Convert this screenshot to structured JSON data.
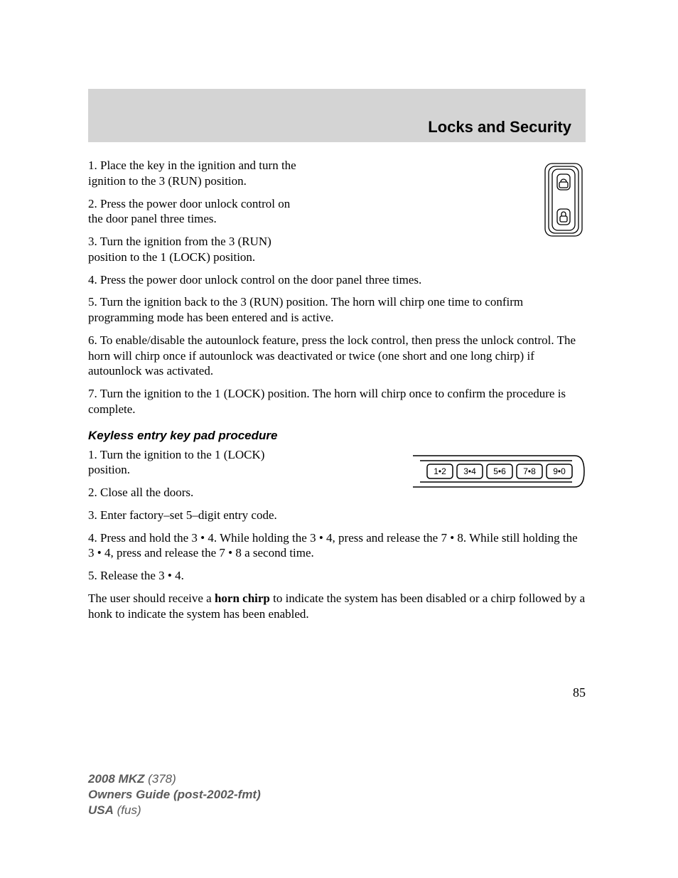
{
  "header": {
    "title": "Locks and Security",
    "bar_bg": "#d4d4d4",
    "title_fontsize": 22,
    "title_font": "Arial"
  },
  "procedure1": {
    "p1": "1. Place the key in the ignition and turn the ignition to the 3 (RUN) position.",
    "p2": "2. Press the power door unlock control on the door panel three times.",
    "p3": "3. Turn the ignition from the 3 (RUN) position to the 1 (LOCK) position.",
    "p4": "4. Press the power door unlock control on the door panel three times.",
    "p5": "5. Turn the ignition back to the 3 (RUN) position. The horn will chirp one time to confirm programming mode has been entered and is active.",
    "p6": "6. To enable/disable the autounlock feature, press the lock control, then press the unlock control. The horn will chirp once if autounlock was deactivated or twice (one short and one long chirp) if autounlock was activated.",
    "p7": "7. Turn the ignition to the 1 (LOCK) position. The horn will chirp once to confirm the procedure is complete."
  },
  "heading2": "Keyless entry key pad procedure",
  "procedure2": {
    "p1": "1. Turn the ignition to the 1 (LOCK) position.",
    "p2": "2. Close all the doors.",
    "p3": "3. Enter factory–set 5–digit entry code.",
    "p4": "4. Press and hold the 3 • 4. While holding the 3 • 4, press and release the 7 • 8. While still holding the 3 • 4, press and release the 7 • 8 a second time.",
    "p5": "5. Release the 3 • 4.",
    "p6_pre": "The user should receive a ",
    "p6_bold": "horn chirp",
    "p6_post": " to indicate the system has been disabled or a chirp followed by a honk to indicate the system has been enabled."
  },
  "keypad": {
    "buttons": [
      "1•2",
      "3•4",
      "5•6",
      "7•8",
      "9•0"
    ],
    "stroke": "#000000",
    "fill": "#ffffff"
  },
  "lock_switch": {
    "stroke": "#000000",
    "fill": "#ffffff"
  },
  "page_number": "85",
  "footer": {
    "line1_bold": "2008 MKZ",
    "line1_ital": " (378)",
    "line2": "Owners Guide (post-2002-fmt)",
    "line3_bold": "USA",
    "line3_ital": " (fus)"
  },
  "typography": {
    "body_font": "Georgia",
    "body_fontsize": 17,
    "body_color": "#000000",
    "heading_font": "Arial",
    "footer_color": "#5a5a5a"
  }
}
